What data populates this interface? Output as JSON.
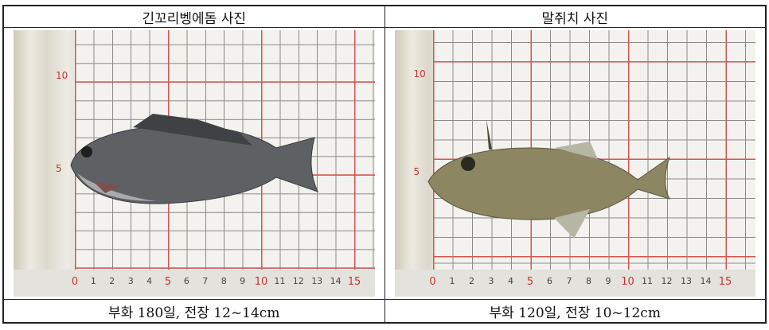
{
  "table": {
    "headers": [
      "긴꼬리벵에돔 사진",
      "말쥐치 사진"
    ],
    "captions": [
      "부화 180일, 전장 12~14cm",
      "부화 120일, 전장 10~12cm"
    ]
  },
  "photos": [
    {
      "subject": "fish-photo-long-tail-blackfish",
      "ruler_labels": [
        "0",
        "1",
        "2",
        "3",
        "4",
        "5",
        "6",
        "7",
        "8",
        "9",
        "10",
        "11",
        "12",
        "13",
        "14",
        "15"
      ],
      "vertical_labels": [
        "10",
        "5"
      ]
    },
    {
      "subject": "fish-photo-filefish",
      "ruler_labels": [
        "0",
        "1",
        "2",
        "3",
        "4",
        "5",
        "6",
        "7",
        "8",
        "9",
        "10",
        "11",
        "12",
        "13",
        "14",
        "15"
      ],
      "vertical_labels": [
        "10",
        "5"
      ]
    }
  ],
  "colors": {
    "grid_major": "#d9534f",
    "grid_minor": "#8a8a8a",
    "border": "#222222"
  }
}
